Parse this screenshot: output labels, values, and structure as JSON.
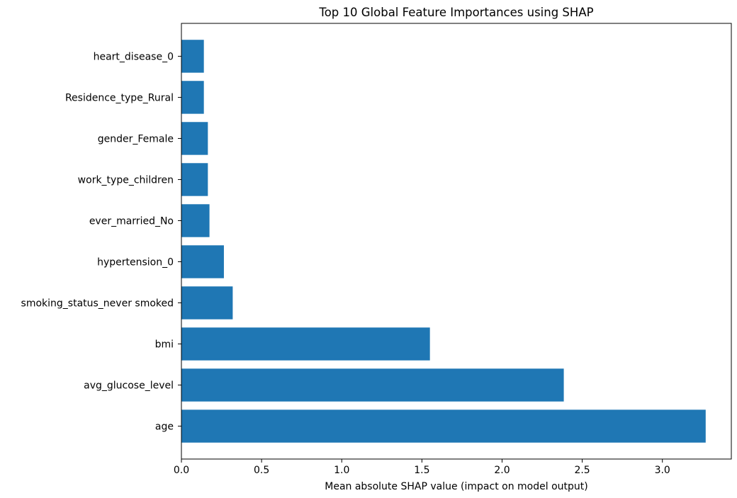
{
  "chart_data": {
    "type": "bar",
    "orientation": "horizontal",
    "title": "Top 10 Global Feature Importances using SHAP",
    "xlabel": "Mean absolute SHAP value (impact on model output)",
    "ylabel": "",
    "categories": [
      "age",
      "avg_glucose_level",
      "bmi",
      "smoking_status_never smoked",
      "hypertension_0",
      "ever_married_No",
      "work_type_children",
      "gender_Female",
      "Residence_type_Rural",
      "heart_disease_0"
    ],
    "values": [
      3.27,
      2.385,
      1.55,
      0.32,
      0.265,
      0.175,
      0.165,
      0.165,
      0.14,
      0.14
    ],
    "xlim": [
      0,
      3.43
    ],
    "xticks": [
      0.0,
      0.5,
      1.0,
      1.5,
      2.0,
      2.5,
      3.0
    ],
    "xtick_labels": [
      "0.0",
      "0.5",
      "1.0",
      "1.5",
      "2.0",
      "2.5",
      "3.0"
    ],
    "bar_color": "#1f77b4",
    "grid": false,
    "legend": "none"
  }
}
